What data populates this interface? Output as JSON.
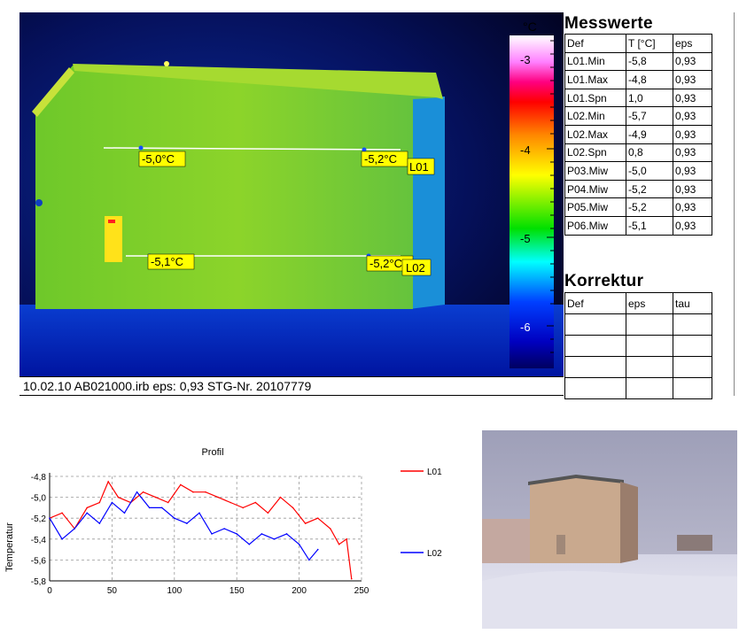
{
  "thermal_image": {
    "caption": "10.02.10  AB021000.irb  eps: 0,93  STG-Nr. 20107779",
    "line_labels": [
      "L01",
      "L02"
    ],
    "spot_labels": [
      "-5,0°C",
      "-5,2°C",
      "-5,1°C",
      "-5,2°C"
    ]
  },
  "color_scale": {
    "unit": "°C",
    "ticks": [
      "-3",
      "-4",
      "-5",
      "-6"
    ],
    "colors": [
      "#ffffff",
      "#ff00ff",
      "#ff0000",
      "#ff8800",
      "#ffff00",
      "#00ff00",
      "#00ffff",
      "#0000ff",
      "#000066"
    ]
  },
  "messwerte": {
    "title": "Messwerte",
    "headers": [
      "Def",
      "T [°C]",
      "eps"
    ],
    "rows": [
      [
        "L01.Min",
        "-5,8",
        "0,93"
      ],
      [
        "L01.Max",
        "-4,8",
        "0,93"
      ],
      [
        "L01.Spn",
        "1,0",
        "0,93"
      ],
      [
        "L02.Min",
        "-5,7",
        "0,93"
      ],
      [
        "L02.Max",
        "-4,9",
        "0,93"
      ],
      [
        "L02.Spn",
        "0,8",
        "0,93"
      ],
      [
        "P03.Miw",
        "-5,0",
        "0,93"
      ],
      [
        "P04.Miw",
        "-5,2",
        "0,93"
      ],
      [
        "P05.Miw",
        "-5,2",
        "0,93"
      ],
      [
        "P06.Miw",
        "-5,1",
        "0,93"
      ]
    ]
  },
  "korrektur": {
    "title": "Korrektur",
    "headers": [
      "Def",
      "eps",
      "tau"
    ],
    "empty_rows": 4
  },
  "chart_data": {
    "type": "line",
    "title": "Profil",
    "xlabel": "",
    "ylabel": "Temperatur",
    "xlim": [
      0,
      250
    ],
    "ylim": [
      -5.8,
      -4.8
    ],
    "xticks": [
      "0",
      "50",
      "100",
      "150",
      "200",
      "250"
    ],
    "yticks": [
      "-4,8",
      "-5,0",
      "-5,2",
      "-5,4",
      "-5,6",
      "-5,8"
    ],
    "grid": true,
    "legend_position": "right",
    "series": [
      {
        "name": "L01",
        "color": "#ff0000",
        "x": [
          0,
          10,
          20,
          30,
          40,
          47,
          55,
          65,
          75,
          85,
          95,
          105,
          115,
          125,
          135,
          145,
          155,
          165,
          175,
          185,
          195,
          205,
          215,
          225,
          232,
          238,
          242
        ],
        "values": [
          -5.2,
          -5.15,
          -5.3,
          -5.1,
          -5.05,
          -4.85,
          -5.0,
          -5.05,
          -4.95,
          -5.0,
          -5.05,
          -4.88,
          -4.95,
          -4.95,
          -5.0,
          -5.05,
          -5.1,
          -5.05,
          -5.15,
          -5.0,
          -5.1,
          -5.25,
          -5.2,
          -5.3,
          -5.45,
          -5.4,
          -5.78
        ]
      },
      {
        "name": "L02",
        "color": "#0000ff",
        "x": [
          0,
          10,
          20,
          30,
          40,
          50,
          60,
          70,
          80,
          90,
          100,
          110,
          120,
          130,
          140,
          150,
          160,
          170,
          180,
          190,
          200,
          208,
          215
        ],
        "values": [
          -5.2,
          -5.4,
          -5.3,
          -5.15,
          -5.25,
          -5.05,
          -5.15,
          -4.95,
          -5.1,
          -5.1,
          -5.2,
          -5.25,
          -5.15,
          -5.35,
          -5.3,
          -5.35,
          -5.45,
          -5.35,
          -5.4,
          -5.35,
          -5.45,
          -5.6,
          -5.5
        ]
      }
    ]
  }
}
